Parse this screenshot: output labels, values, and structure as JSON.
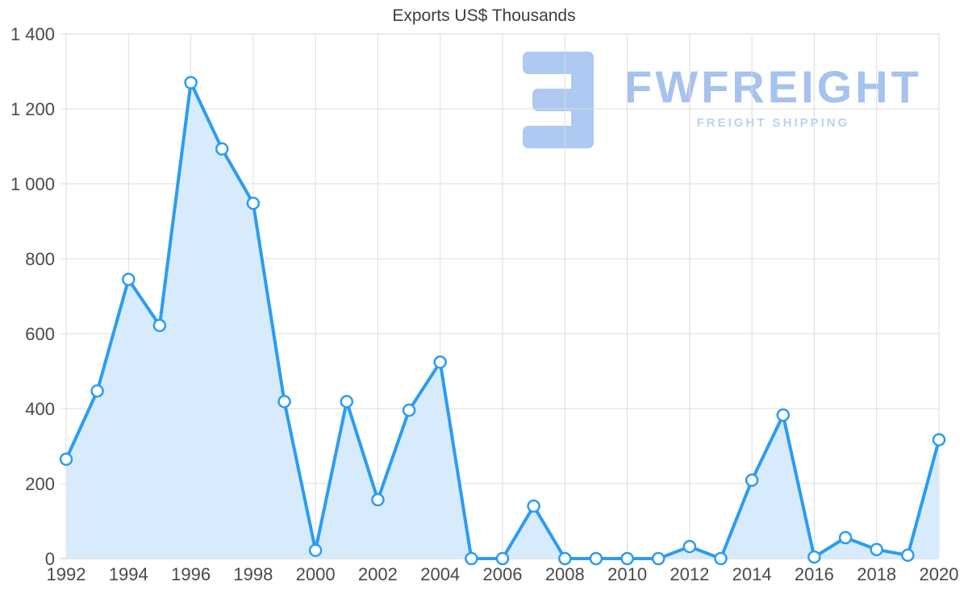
{
  "watermark": {
    "brand": "FWFREIGHT",
    "subtitle": "FREIGHT SHIPPING",
    "brand_color": "#a6c2ee",
    "subtitle_color": "#b9d1f3",
    "icon_color": "#aecaf2",
    "icon": "fwfreight-logo-icon"
  },
  "chart_data": {
    "type": "area",
    "title": "Exports US$ Thousands",
    "xlabel": "",
    "ylabel": "",
    "x": [
      1992,
      1993,
      1994,
      1995,
      1996,
      1997,
      1998,
      1999,
      2000,
      2001,
      2002,
      2003,
      2004,
      2005,
      2006,
      2007,
      2008,
      2009,
      2010,
      2011,
      2012,
      2013,
      2014,
      2015,
      2016,
      2017,
      2018,
      2019,
      2020
    ],
    "values": [
      265,
      447,
      745,
      622,
      1270,
      1093,
      948,
      419,
      22,
      419,
      157,
      396,
      524,
      0,
      0,
      140,
      0,
      0,
      0,
      0,
      32,
      0,
      209,
      383,
      4,
      56,
      24,
      9,
      317
    ],
    "series_name": "Exports US$ Thousands",
    "ylim": [
      0,
      1400
    ],
    "ytick_step": 200,
    "ytick_labels": [
      "0",
      "200",
      "400",
      "600",
      "800",
      "1 000",
      "1 200",
      "1 400"
    ],
    "xtick_labels": [
      "1992",
      "1994",
      "1996",
      "1998",
      "2000",
      "2002",
      "2004",
      "2006",
      "2008",
      "2010",
      "2012",
      "2014",
      "2016",
      "2018",
      "2020"
    ],
    "grid": true,
    "legend": "none",
    "line_color": "#2b9cf2",
    "fill_color": "#d8ebfc",
    "marker_fill": "#ffffff",
    "marker_stroke": "#2b9cf2",
    "grid_color": "#dcdcdc",
    "axis_line_color": "#c9c9c9",
    "tick_color": "#4a4a4a",
    "title_color": "#3d3d3d"
  }
}
